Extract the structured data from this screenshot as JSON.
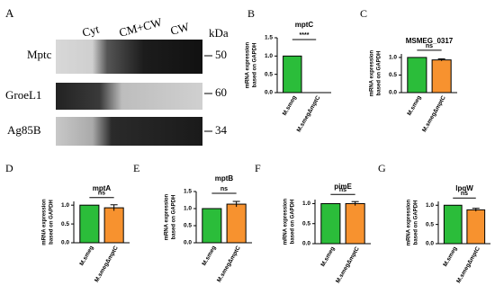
{
  "blot": {
    "panel": "A",
    "lanes": [
      "Cyt",
      "CM+CW",
      "CW"
    ],
    "unit": "kDa",
    "rows": [
      {
        "label": "Mptc",
        "marker": 50
      },
      {
        "label": "GroeL1",
        "marker": 60
      },
      {
        "label": "Ag85B",
        "marker": 34
      }
    ]
  },
  "chart_data": [
    {
      "type": "bar",
      "panel": "B",
      "title": "mptC",
      "ylabel": [
        "mRNA expression",
        "based on GAPDH"
      ],
      "categories": [
        "M.smeg",
        "M.smegΔmptC"
      ],
      "values": [
        1.0,
        0
      ],
      "errors": [
        0,
        0
      ],
      "colors": [
        "#2bbd3a",
        "#f7922f"
      ],
      "ylim": [
        0,
        1.5
      ],
      "yticks": [
        {
          "value": 0,
          "label": "0.0"
        },
        {
          "value": 0.5,
          "label": "0.5"
        },
        {
          "value": 1,
          "label": "1.0"
        },
        {
          "value": 1.5,
          "label": "1.5"
        }
      ],
      "annotation": "****"
    },
    {
      "type": "bar",
      "panel": "C",
      "title": "MSMEG_0317",
      "ylabel": [
        "mRNA expression",
        "based on GAPDH"
      ],
      "categories": [
        "M.smeg",
        "M.smegΔmptC"
      ],
      "values": [
        1.0,
        0.93
      ],
      "errors": [
        0,
        0.03
      ],
      "colors": [
        "#2bbd3a",
        "#f7922f"
      ],
      "ylim": [
        0,
        1.1
      ],
      "yticks": [
        {
          "value": 0,
          "label": "0.0"
        },
        {
          "value": 0.5,
          "label": "0.5"
        },
        {
          "value": 1,
          "label": "1.0"
        }
      ],
      "annotation": "ns"
    },
    {
      "type": "bar",
      "panel": "D",
      "title": "mptA",
      "ylabel": [
        "mRNA expression",
        "based on GAPDH"
      ],
      "categories": [
        "M.smeg",
        "M.smegΔmptC"
      ],
      "values": [
        1.0,
        0.93
      ],
      "errors": [
        0,
        0.08
      ],
      "colors": [
        "#2bbd3a",
        "#f7922f"
      ],
      "ylim": [
        0,
        1.1
      ],
      "yticks": [
        {
          "value": 0,
          "label": "0.0"
        },
        {
          "value": 0.5,
          "label": "0.5"
        },
        {
          "value": 1,
          "label": "1.0"
        }
      ],
      "annotation": "ns"
    },
    {
      "type": "bar",
      "panel": "E",
      "title": "mptB",
      "ylabel": [
        "mRNA expression",
        "based on GAPDH"
      ],
      "categories": [
        "M.smeg",
        "M.smegΔmptC"
      ],
      "values": [
        1.0,
        1.13
      ],
      "errors": [
        0,
        0.08
      ],
      "colors": [
        "#2bbd3a",
        "#f7922f"
      ],
      "ylim": [
        0,
        1.5
      ],
      "yticks": [
        {
          "value": 0,
          "label": "0.0"
        },
        {
          "value": 0.5,
          "label": "0.5"
        },
        {
          "value": 1,
          "label": "1.0"
        },
        {
          "value": 1.5,
          "label": "1.5"
        }
      ],
      "annotation": "ns"
    },
    {
      "type": "bar",
      "panel": "F",
      "title": "pimE",
      "ylabel": [
        "mRNA expression",
        "based on GAPDH"
      ],
      "categories": [
        "M.smeg",
        "M.smegΔmptC"
      ],
      "values": [
        1.0,
        1.0
      ],
      "errors": [
        0,
        0.05
      ],
      "colors": [
        "#2bbd3a",
        "#f7922f"
      ],
      "ylim": [
        0,
        1.1
      ],
      "yticks": [
        {
          "value": 0,
          "label": "0.0"
        },
        {
          "value": 0.5,
          "label": "0.5"
        },
        {
          "value": 1,
          "label": "1.0"
        }
      ],
      "annotation": "ns"
    },
    {
      "type": "bar",
      "panel": "G",
      "title": "lpqW",
      "ylabel": [
        "mRNA expression",
        "based on GAPDH"
      ],
      "categories": [
        "M.smeg",
        "M.smegΔmptC"
      ],
      "values": [
        1.0,
        0.88
      ],
      "errors": [
        0,
        0.04
      ],
      "colors": [
        "#2bbd3a",
        "#f7922f"
      ],
      "ylim": [
        0,
        1.1
      ],
      "yticks": [
        {
          "value": 0,
          "label": "0.0"
        },
        {
          "value": 0.5,
          "label": "0.5"
        },
        {
          "value": 1,
          "label": "1.0"
        }
      ],
      "annotation": "ns"
    }
  ]
}
